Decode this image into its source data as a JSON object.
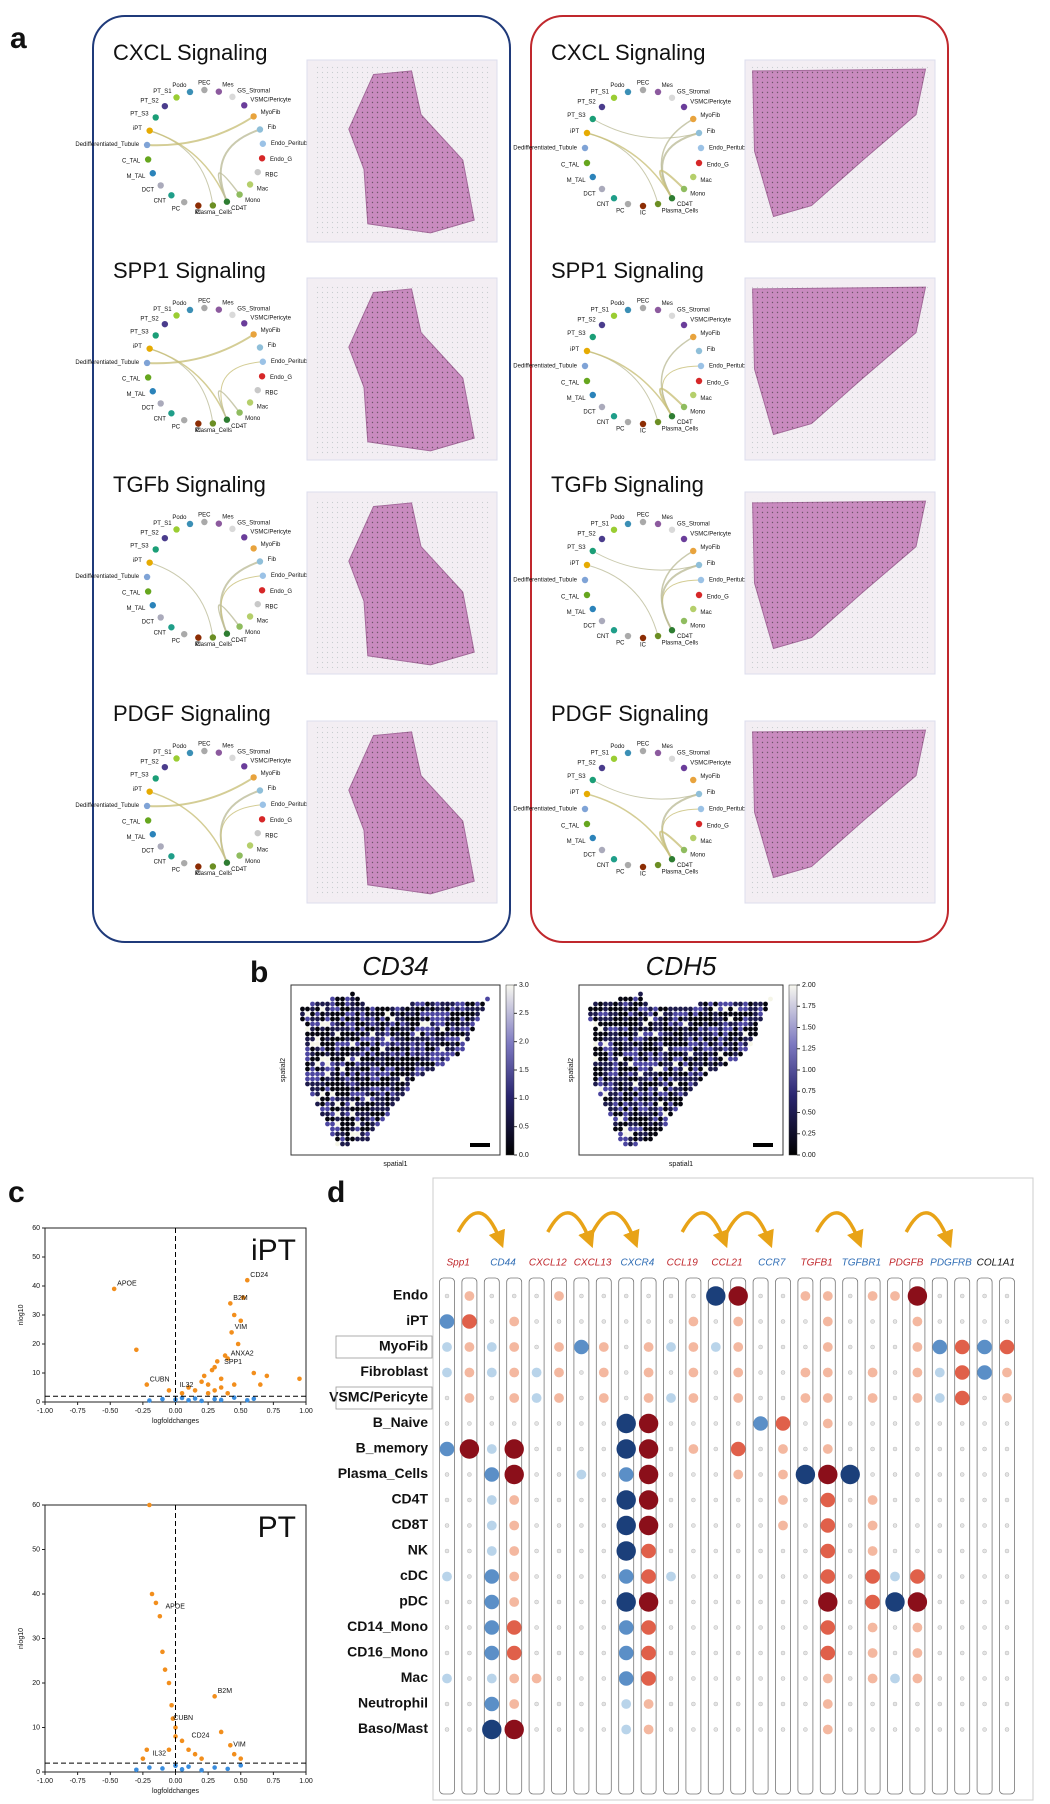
{
  "panel_a": {
    "label": "a",
    "columns": [
      {
        "titles": [
          "CXCL Signaling",
          "SPP1 Signaling",
          "TGFb Signaling",
          "PDGF Signaling"
        ],
        "nodes": [
          "Podo",
          "PEC",
          "Mes",
          "GS_Stromal",
          "VSMC/Pericyte",
          "MyoFib",
          "Fib",
          "Endo_Peritubular",
          "Endo_G",
          "RBC",
          "Mac",
          "Mono",
          "CD4T",
          "Plasma_Cells",
          "IC",
          "PC",
          "CNT",
          "DCT",
          "M_TAL",
          "C_TAL",
          "Dedifferentiated_Tubule",
          "iPT",
          "PT_S3",
          "PT_S2",
          "PT_S1"
        ],
        "node_colors": [
          "#3b8fb5",
          "#a9a9a9",
          "#8c5a9e",
          "#d9d9d9",
          "#6a3d9a",
          "#e8a33d",
          "#8fbfd9",
          "#9bc2e6",
          "#d62728",
          "#c8c8c8",
          "#b5cf6b",
          "#8fbc5f",
          "#2e7d32",
          "#6b8e23",
          "#8c2d04",
          "#aaaaaa",
          "#1f9e89",
          "#aaaabb",
          "#2b83ba",
          "#66a61e",
          "#7fa3d6",
          "#e6ab02",
          "#1b9e77",
          "#4a3c8c",
          "#9acd32"
        ]
      },
      {
        "titles": [
          "CXCL Signaling",
          "SPP1 Signaling",
          "TGFb Signaling",
          "PDGF Signaling"
        ],
        "nodes": [
          "Podo",
          "PEC",
          "Mes",
          "GS_Stromal",
          "VSMC/Pericyte",
          "MyoFib",
          "Fib",
          "Endo_Peritubular",
          "Endo_G",
          "Mac",
          "Mono",
          "CD4T",
          "Plasma_Cells",
          "IC",
          "PC",
          "CNT",
          "DCT",
          "M_TAL",
          "C_TAL",
          "Dedifferentiated_Tubule",
          "iPT",
          "PT_S3",
          "PT_S2",
          "PT_S1"
        ],
        "node_colors": [
          "#3b8fb5",
          "#a9a9a9",
          "#8c5a9e",
          "#d9d9d9",
          "#6a3d9a",
          "#e8a33d",
          "#8fbfd9",
          "#9bc2e6",
          "#d62728",
          "#b5cf6b",
          "#8fbc5f",
          "#2e7d32",
          "#6b8e23",
          "#8c2d04",
          "#aaaaaa",
          "#1f9e89",
          "#aaaabb",
          "#2b83ba",
          "#66a61e",
          "#7fa3d6",
          "#e6ab02",
          "#1b9e77",
          "#4a3c8c",
          "#9acd32"
        ]
      }
    ]
  },
  "panel_b": {
    "label": "b",
    "plots": [
      {
        "title": "CD34",
        "xlabel": "spatial1",
        "ylabel": "spatial2",
        "clim": [
          0,
          3
        ],
        "cticks": [
          {
            "value": 0,
            "label": "0.0"
          },
          0.5,
          {
            "value": 1,
            "label": "1.0"
          },
          1.5,
          {
            "value": 2,
            "label": "2.0"
          },
          2.5,
          {
            "value": 3,
            "label": "3.0"
          }
        ]
      },
      {
        "title": "CDH5",
        "xlabel": "spatial1",
        "ylabel": "spatial2",
        "clim": [
          0,
          2
        ],
        "cticks": [
          {
            "value": 0,
            "label": "0.00"
          },
          {
            "value": 0.25,
            "label": "0.25"
          },
          {
            "value": 0.5,
            "label": "0.50"
          },
          {
            "value": 0.75,
            "label": "0.75"
          },
          {
            "value": 1,
            "label": "1.00"
          },
          {
            "value": 1.25,
            "label": "1.25"
          },
          {
            "value": 1.5,
            "label": "1.50"
          },
          {
            "value": 1.75,
            "label": "1.75"
          },
          {
            "value": 2,
            "label": "2.00"
          }
        ]
      }
    ]
  },
  "panel_c": {
    "label": "c",
    "plots": [
      {
        "type": "scatter",
        "title": "iPT",
        "xlabel": "logfoldchanges",
        "ylabel": "nlog10",
        "xlim": [
          -1,
          1
        ],
        "ylim": [
          0,
          60
        ],
        "xticks": [
          {
            "value": -1,
            "label": "-1.00"
          },
          {
            "value": -0.75,
            "label": "-0.75"
          },
          {
            "value": -0.5,
            "label": "-0.50"
          },
          {
            "value": -0.25,
            "label": "-0.25"
          },
          {
            "value": 0,
            "label": "0.00"
          },
          {
            "value": 0.25,
            "label": "0.25"
          },
          {
            "value": 0.5,
            "label": "0.50"
          },
          {
            "value": 0.75,
            "label": "0.75"
          },
          {
            "value": 1,
            "label": "1.00"
          }
        ],
        "yticks": [
          0,
          10,
          20,
          30,
          40,
          50,
          60
        ],
        "hline": 2,
        "vline": 0,
        "series": [
          {
            "color": "#f28e1c",
            "x": [
              -0.47,
              -0.3,
              -0.22,
              -0.05,
              0.05,
              0.1,
              0.15,
              0.2,
              0.22,
              0.25,
              0.28,
              0.3,
              0.32,
              0.35,
              0.38,
              0.4,
              0.42,
              0.43,
              0.45,
              0.48,
              0.5,
              0.52,
              0.55,
              0.6,
              0.65,
              0.7,
              0.95,
              0.25,
              0.3,
              0.35,
              0.4,
              0.45
            ],
            "y": [
              39,
              18,
              6,
              4,
              3,
              5,
              4,
              7,
              9,
              6,
              11,
              12,
              14,
              8,
              16,
              15,
              34,
              24,
              30,
              20,
              28,
              36,
              42,
              10,
              6,
              9,
              8,
              3,
              4,
              5,
              3,
              6
            ]
          },
          {
            "color": "#3a8dde",
            "x": [
              -0.2,
              -0.1,
              0,
              0.05,
              0.1,
              0.15,
              0.2,
              0.3,
              0.35,
              0.45,
              0.55,
              0.6
            ],
            "y": [
              0.5,
              1,
              0.8,
              1.4,
              0.6,
              1.2,
              0.4,
              1,
              0.7,
              1.5,
              0.6,
              1.1
            ]
          }
        ],
        "annotations": [
          {
            "text": "APOE",
            "x": -0.47,
            "y": 39
          },
          {
            "text": "CD24",
            "x": 0.55,
            "y": 42
          },
          {
            "text": "B2M",
            "x": 0.42,
            "y": 34
          },
          {
            "text": "VIM",
            "x": 0.43,
            "y": 24
          },
          {
            "text": "ANXA2",
            "x": 0.4,
            "y": 15
          },
          {
            "text": "SPP1",
            "x": 0.35,
            "y": 12
          },
          {
            "text": "CUBN",
            "x": -0.22,
            "y": 6
          },
          {
            "text": "IL32",
            "x": 0.01,
            "y": 4
          }
        ]
      },
      {
        "type": "scatter",
        "title": "PT",
        "xlabel": "logfoldchanges",
        "ylabel": "nlog10",
        "xlim": [
          -1,
          1
        ],
        "ylim": [
          0,
          60
        ],
        "xticks": [
          {
            "value": -1,
            "label": "-1.00"
          },
          {
            "value": -0.75,
            "label": "-0.75"
          },
          {
            "value": -0.5,
            "label": "-0.50"
          },
          {
            "value": -0.25,
            "label": "-0.25"
          },
          {
            "value": 0,
            "label": "0.00"
          },
          {
            "value": 0.25,
            "label": "0.25"
          },
          {
            "value": 0.5,
            "label": "0.50"
          },
          {
            "value": 0.75,
            "label": "0.75"
          },
          {
            "value": 1,
            "label": "1.00"
          }
        ],
        "yticks": [
          0,
          10,
          20,
          30,
          40,
          50,
          60
        ],
        "hline": 2,
        "vline": 0,
        "series": [
          {
            "color": "#f28e1c",
            "x": [
              -0.2,
              -0.18,
              -0.15,
              -0.12,
              -0.1,
              -0.08,
              -0.05,
              -0.03,
              -0.02,
              0,
              -0.25,
              -0.22,
              0.05,
              0.1,
              0.15,
              0.2,
              0.3,
              0.35,
              0.42,
              0.45,
              0.5,
              -0.05,
              0
            ],
            "y": [
              60,
              40,
              38,
              35,
              27,
              23,
              20,
              15,
              12,
              10,
              3,
              5,
              7,
              5,
              4,
              3,
              17,
              9,
              6,
              4,
              3,
              5,
              8
            ]
          },
          {
            "color": "#3a8dde",
            "x": [
              -0.3,
              -0.2,
              -0.1,
              0,
              0.05,
              0.1,
              0.2,
              0.3,
              0.4,
              0.5
            ],
            "y": [
              0.5,
              1,
              0.8,
              1.4,
              0.6,
              1.2,
              0.4,
              1,
              0.7,
              1.5
            ]
          }
        ],
        "annotations": [
          {
            "text": "APOE",
            "x": -0.1,
            "y": 36
          },
          {
            "text": "B2M",
            "x": 0.3,
            "y": 17
          },
          {
            "text": "CUBN",
            "x": -0.04,
            "y": 11
          },
          {
            "text": "CD24",
            "x": 0.1,
            "y": 7
          },
          {
            "text": "VIM",
            "x": 0.42,
            "y": 5
          },
          {
            "text": "IL32",
            "x": -0.2,
            "y": 3
          }
        ]
      }
    ]
  },
  "panel_d": {
    "label": "d",
    "genes": [
      "Spp1",
      "CD44",
      "CXCL12",
      "CXCL13",
      "CXCR4",
      "CCL19",
      "CCL21",
      "CCR7",
      "TGFB1",
      "TGFBR1",
      "PDGFB",
      "PDGFRB",
      "COL1A1"
    ],
    "gene_colors": [
      "#c0282d",
      "#2f6db5",
      "#c0282d",
      "#c0282d",
      "#2f6db5",
      "#c0282d",
      "#c0282d",
      "#2f6db5",
      "#c0282d",
      "#2f6db5",
      "#c0282d",
      "#2f6db5",
      "#111111"
    ],
    "rows": [
      "Endo",
      "iPT",
      "MyoFib",
      "Fibroblast",
      "VSMC/Pericyte",
      "B_Naive",
      "B_memory",
      "Plasma_Cells",
      "CD4T",
      "CD8T",
      "NK",
      "cDC",
      "pDC",
      "CD14_Mono",
      "CD16_Mono",
      "Mac",
      "Neutrophil",
      "Baso/Mast"
    ],
    "dot_levels": [
      [
        0,
        1,
        0,
        0,
        0,
        1,
        0,
        0,
        0,
        0,
        0,
        0,
        -3,
        3,
        0,
        0,
        1,
        1,
        0,
        1,
        1,
        3,
        0,
        0,
        0,
        0
      ],
      [
        -2,
        2,
        0,
        1,
        0,
        0,
        0,
        0,
        0,
        0,
        0,
        1,
        0,
        1,
        0,
        0,
        0,
        1,
        0,
        0,
        0,
        1,
        0,
        0,
        0,
        0
      ],
      [
        -1,
        1,
        -1,
        1,
        0,
        1,
        -2,
        1,
        0,
        1,
        -1,
        1,
        -1,
        1,
        0,
        0,
        0,
        1,
        0,
        0,
        0,
        1,
        -2,
        2,
        -2,
        2
      ],
      [
        -1,
        1,
        -1,
        1,
        -1,
        1,
        0,
        1,
        0,
        1,
        0,
        1,
        0,
        1,
        0,
        0,
        1,
        1,
        0,
        1,
        0,
        1,
        -1,
        2,
        -2,
        1
      ],
      [
        0,
        1,
        0,
        1,
        -1,
        1,
        0,
        1,
        0,
        1,
        -1,
        1,
        0,
        1,
        0,
        0,
        1,
        1,
        0,
        1,
        0,
        1,
        -1,
        2,
        0,
        1
      ],
      [
        0,
        0,
        0,
        0,
        0,
        0,
        0,
        0,
        -3,
        3,
        0,
        0,
        0,
        0,
        -2,
        2,
        0,
        1,
        0,
        0,
        0,
        0,
        0,
        0,
        0,
        0
      ],
      [
        -2,
        3,
        -1,
        3,
        0,
        0,
        0,
        0,
        -3,
        3,
        0,
        1,
        0,
        2,
        0,
        1,
        0,
        1,
        0,
        0,
        0,
        0,
        0,
        0,
        0,
        0
      ],
      [
        0,
        0,
        -2,
        3,
        0,
        0,
        -1,
        0,
        -2,
        3,
        0,
        0,
        0,
        1,
        0,
        1,
        -3,
        3,
        -3,
        0,
        0,
        0,
        0,
        0,
        0,
        0
      ],
      [
        0,
        0,
        -1,
        1,
        0,
        0,
        0,
        0,
        -3,
        3,
        0,
        0,
        0,
        0,
        0,
        1,
        0,
        2,
        0,
        1,
        0,
        0,
        0,
        0,
        0,
        0
      ],
      [
        0,
        0,
        -1,
        1,
        0,
        0,
        0,
        0,
        -3,
        3,
        0,
        0,
        0,
        0,
        0,
        1,
        0,
        2,
        0,
        1,
        0,
        0,
        0,
        0,
        0,
        0
      ],
      [
        0,
        0,
        -1,
        1,
        0,
        0,
        0,
        0,
        -3,
        2,
        0,
        0,
        0,
        0,
        0,
        0,
        0,
        2,
        0,
        1,
        0,
        0,
        0,
        0,
        0,
        0
      ],
      [
        -1,
        0,
        -2,
        1,
        0,
        0,
        0,
        0,
        -2,
        2,
        -1,
        0,
        0,
        0,
        0,
        0,
        0,
        2,
        0,
        2,
        -1,
        2,
        0,
        0,
        0,
        0
      ],
      [
        0,
        0,
        -2,
        1,
        0,
        0,
        0,
        0,
        -3,
        3,
        0,
        0,
        0,
        0,
        0,
        0,
        0,
        3,
        0,
        2,
        -3,
        3,
        0,
        0,
        0,
        0
      ],
      [
        0,
        0,
        -2,
        2,
        0,
        0,
        0,
        0,
        -2,
        2,
        0,
        0,
        0,
        0,
        0,
        0,
        0,
        2,
        0,
        1,
        0,
        1,
        0,
        0,
        0,
        0
      ],
      [
        0,
        0,
        -2,
        2,
        0,
        0,
        0,
        0,
        -2,
        2,
        0,
        0,
        0,
        0,
        0,
        0,
        0,
        2,
        0,
        1,
        0,
        1,
        0,
        0,
        0,
        0
      ],
      [
        -1,
        0,
        -1,
        1,
        1,
        0,
        0,
        0,
        -2,
        2,
        0,
        0,
        0,
        0,
        0,
        0,
        0,
        1,
        0,
        1,
        -1,
        1,
        0,
        0,
        0,
        0
      ],
      [
        0,
        0,
        -2,
        1,
        0,
        0,
        0,
        0,
        -1,
        1,
        0,
        0,
        0,
        0,
        0,
        0,
        0,
        1,
        0,
        0,
        0,
        0,
        0,
        0,
        0,
        0
      ],
      [
        0,
        0,
        -3,
        3,
        0,
        0,
        0,
        0,
        -1,
        1,
        0,
        0,
        0,
        0,
        0,
        0,
        0,
        1,
        0,
        0,
        0,
        0,
        0,
        0,
        0,
        0
      ]
    ]
  }
}
